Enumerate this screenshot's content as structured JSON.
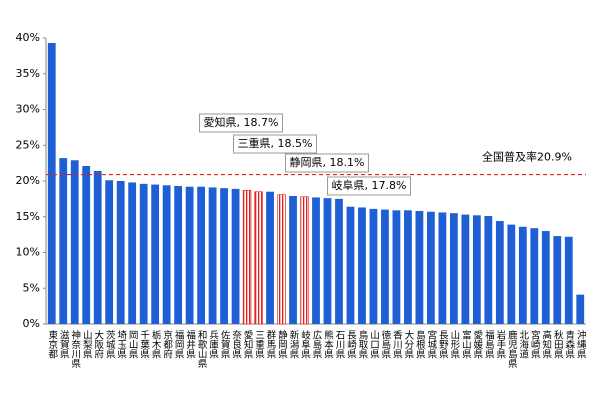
{
  "chart_data": {
    "type": "bar",
    "categories": [
      "東京都",
      "滋賀県",
      "神奈川県",
      "山梨県",
      "大阪府",
      "茨城県",
      "埼玉県",
      "岡山県",
      "千葉県",
      "栃木県",
      "京都府",
      "福岡県",
      "福井県",
      "和歌山県",
      "兵庫県",
      "佐賀県",
      "奈良県",
      "愛知県",
      "三重県",
      "群馬県",
      "静岡県",
      "新潟県",
      "岐阜県",
      "広島県",
      "熊本県",
      "石川県",
      "長崎県",
      "鳥取県",
      "山口県",
      "徳島県",
      "香川県",
      "大分県",
      "島根県",
      "宮城県",
      "長野県",
      "山形県",
      "富山県",
      "愛媛県",
      "福島県",
      "岩手県",
      "鹿児島県",
      "北海道",
      "宮崎県",
      "高知県",
      "秋田県",
      "青森県",
      "沖縄県"
    ],
    "values": [
      39.3,
      23.2,
      22.9,
      22.1,
      21.4,
      20.1,
      20.0,
      19.8,
      19.6,
      19.5,
      19.4,
      19.3,
      19.2,
      19.2,
      19.1,
      19.0,
      18.9,
      18.7,
      18.5,
      18.5,
      18.1,
      17.9,
      17.8,
      17.7,
      17.6,
      17.5,
      16.4,
      16.3,
      16.1,
      16.0,
      15.9,
      15.9,
      15.8,
      15.7,
      15.6,
      15.5,
      15.3,
      15.2,
      15.1,
      14.4,
      13.9,
      13.6,
      13.4,
      13.0,
      12.3,
      12.2,
      4.1
    ],
    "value_labels": [
      null,
      null,
      null,
      null,
      null,
      null,
      null,
      null,
      null,
      null,
      null,
      null,
      null,
      null,
      null,
      null,
      null,
      "愛知県, 18.7%",
      "三重県, 18.5%",
      null,
      "静岡県, 18.1%",
      null,
      "岐阜県, 17.8%",
      null,
      null,
      null,
      null,
      null,
      null,
      null,
      null,
      null,
      null,
      null,
      null,
      null,
      null,
      null,
      null,
      null,
      null,
      null,
      null,
      null,
      null,
      null,
      null
    ],
    "color": "#1f5fd6",
    "highlight_color": "#e02020",
    "reference_line": {
      "value": 20.9,
      "label": "全国普及率20.9%",
      "color": "#e02020"
    },
    "ylim": [
      0,
      40
    ],
    "yticks": [
      {
        "value": 0,
        "label": "0%"
      },
      {
        "value": 5,
        "label": "5%"
      },
      {
        "value": 10,
        "label": "10%"
      },
      {
        "value": 15,
        "label": "15%"
      },
      {
        "value": 20,
        "label": "20%"
      },
      {
        "value": 25,
        "label": "25%"
      },
      {
        "value": 30,
        "label": "30%"
      },
      {
        "value": 35,
        "label": "35%"
      },
      {
        "value": 40,
        "label": "40%"
      }
    ],
    "grid": false
  }
}
